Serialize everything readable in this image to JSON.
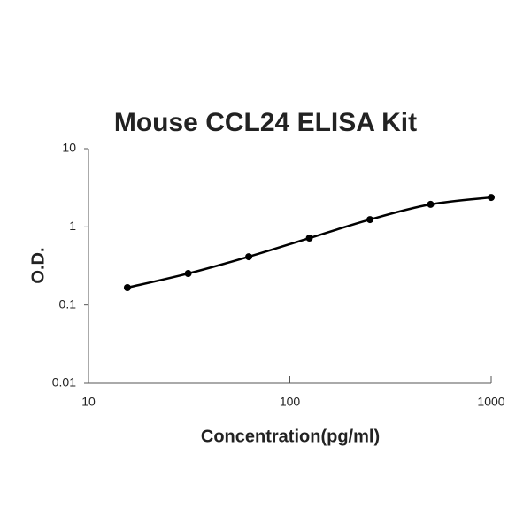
{
  "chart_data": {
    "type": "scatter",
    "title": "Mouse CCL24 ELISA Kit",
    "x_label": "Concentration(pg/ml)",
    "y_label": "O.D.",
    "x": [
      15.6,
      31.25,
      62.5,
      125,
      250,
      500,
      1000
    ],
    "series": [
      {
        "values": [
          0.167,
          0.253,
          0.415,
          0.718,
          1.24,
          1.94,
          2.38
        ],
        "color": "#000000"
      }
    ],
    "xlim": [
      10,
      1000
    ],
    "xticks": [
      10,
      100,
      1000
    ],
    "ylim": [
      0.01,
      10
    ],
    "yticks": [
      0.01,
      0.1,
      1,
      10
    ],
    "xscale": "log",
    "yscale": "log",
    "line": "smooth"
  }
}
